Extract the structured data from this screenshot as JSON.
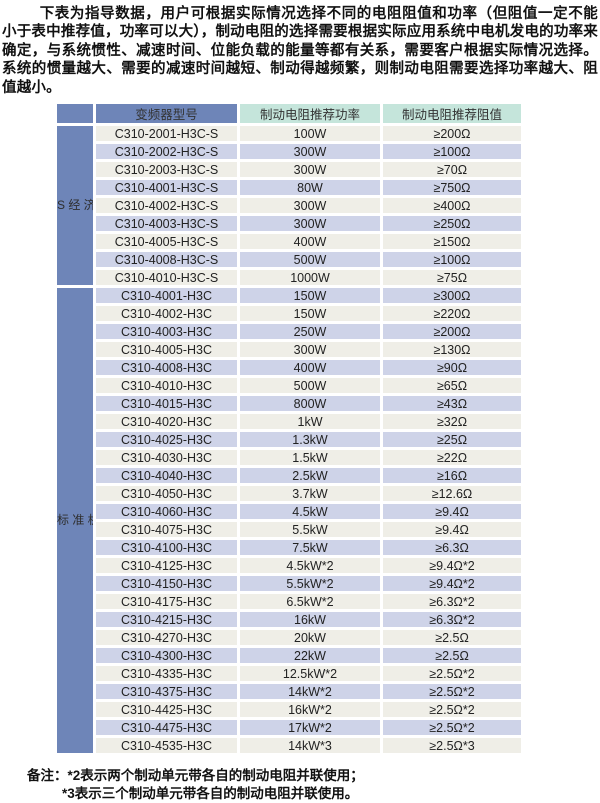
{
  "intro": "下表为指导数据，用户可根据实际情况选择不同的电阻阻值和功率（但阻值一定不能小于表中推荐值，功率可以大），制动电阻的选择需要根据实际应用系统中电机发电的功率来确定，与系统惯性、减速时间、位能负载的能量等都有关系，需要客户根据实际情况选择。系统的惯量越大、需要的减速时间越短、制动得越频繁，则制动电阻需要选择功率越大、阻值越小。",
  "table": {
    "column_headers": {
      "model": "变频器型号",
      "power": "制动电阻推荐功率",
      "resistance": "制动电阻推荐阻值"
    },
    "groups": [
      {
        "id": "s-economy",
        "label": "S经济型",
        "label_vertical": "S\n经\n济\n型",
        "rows": [
          [
            "C310-2001-H3C-S",
            "100W",
            "≥200Ω"
          ],
          [
            "C310-2002-H3C-S",
            "300W",
            "≥100Ω"
          ],
          [
            "C310-2003-H3C-S",
            "300W",
            "≥70Ω"
          ],
          [
            "C310-4001-H3C-S",
            "80W",
            "≥750Ω"
          ],
          [
            "C310-4002-H3C-S",
            "300W",
            "≥400Ω"
          ],
          [
            "C310-4003-H3C-S",
            "300W",
            "≥250Ω"
          ],
          [
            "C310-4005-H3C-S",
            "400W",
            "≥150Ω"
          ],
          [
            "C310-4008-H3C-S",
            "500W",
            "≥100Ω"
          ],
          [
            "C310-4010-H3C-S",
            "1000W",
            "≥75Ω"
          ]
        ]
      },
      {
        "id": "standard",
        "label": "标准机",
        "label_vertical": "标\n准\n机",
        "rows": [
          [
            "C310-4001-H3C",
            "150W",
            "≥300Ω"
          ],
          [
            "C310-4002-H3C",
            "150W",
            "≥220Ω"
          ],
          [
            "C310-4003-H3C",
            "250W",
            "≥200Ω"
          ],
          [
            "C310-4005-H3C",
            "300W",
            "≥130Ω"
          ],
          [
            "C310-4008-H3C",
            "400W",
            "≥90Ω"
          ],
          [
            "C310-4010-H3C",
            "500W",
            "≥65Ω"
          ],
          [
            "C310-4015-H3C",
            "800W",
            "≥43Ω"
          ],
          [
            "C310-4020-H3C",
            "1kW",
            "≥32Ω"
          ],
          [
            "C310-4025-H3C",
            "1.3kW",
            "≥25Ω"
          ],
          [
            "C310-4030-H3C",
            "1.5kW",
            "≥22Ω"
          ],
          [
            "C310-4040-H3C",
            "2.5kW",
            "≥16Ω"
          ],
          [
            "C310-4050-H3C",
            "3.7kW",
            "≥12.6Ω"
          ],
          [
            "C310-4060-H3C",
            "4.5kW",
            "≥9.4Ω"
          ],
          [
            "C310-4075-H3C",
            "5.5kW",
            "≥9.4Ω"
          ],
          [
            "C310-4100-H3C",
            "7.5kW",
            "≥6.3Ω"
          ],
          [
            "C310-4125-H3C",
            "4.5kW*2",
            "≥9.4Ω*2"
          ],
          [
            "C310-4150-H3C",
            "5.5kW*2",
            "≥9.4Ω*2"
          ],
          [
            "C310-4175-H3C",
            "6.5kW*2",
            "≥6.3Ω*2"
          ],
          [
            "C310-4215-H3C",
            "16kW",
            "≥6.3Ω*2"
          ],
          [
            "C310-4270-H3C",
            "20kW",
            "≥2.5Ω"
          ],
          [
            "C310-4300-H3C",
            "22kW",
            "≥2.5Ω"
          ],
          [
            "C310-4335-H3C",
            "12.5kW*2",
            "≥2.5Ω*2"
          ],
          [
            "C310-4375-H3C",
            "14kW*2",
            "≥2.5Ω*2"
          ],
          [
            "C310-4425-H3C",
            "16kW*2",
            "≥2.5Ω*2"
          ],
          [
            "C310-4475-H3C",
            "17kW*2",
            "≥2.5Ω*2"
          ],
          [
            "C310-4535-H3C",
            "14kW*3",
            "≥2.5Ω*3"
          ]
        ]
      }
    ]
  },
  "notes": [
    "备注：*2表示两个制动单元带各自的制动电阻并联使用；",
    "*3表示三个制动单元带各自的制动电阻并联使用。"
  ],
  "colors": {
    "header_blue": "#6e85b8",
    "header_mint": "#c5e5db",
    "row_light": "#efeee7",
    "row_lavender": "#ced3e8",
    "text": "#222222"
  }
}
